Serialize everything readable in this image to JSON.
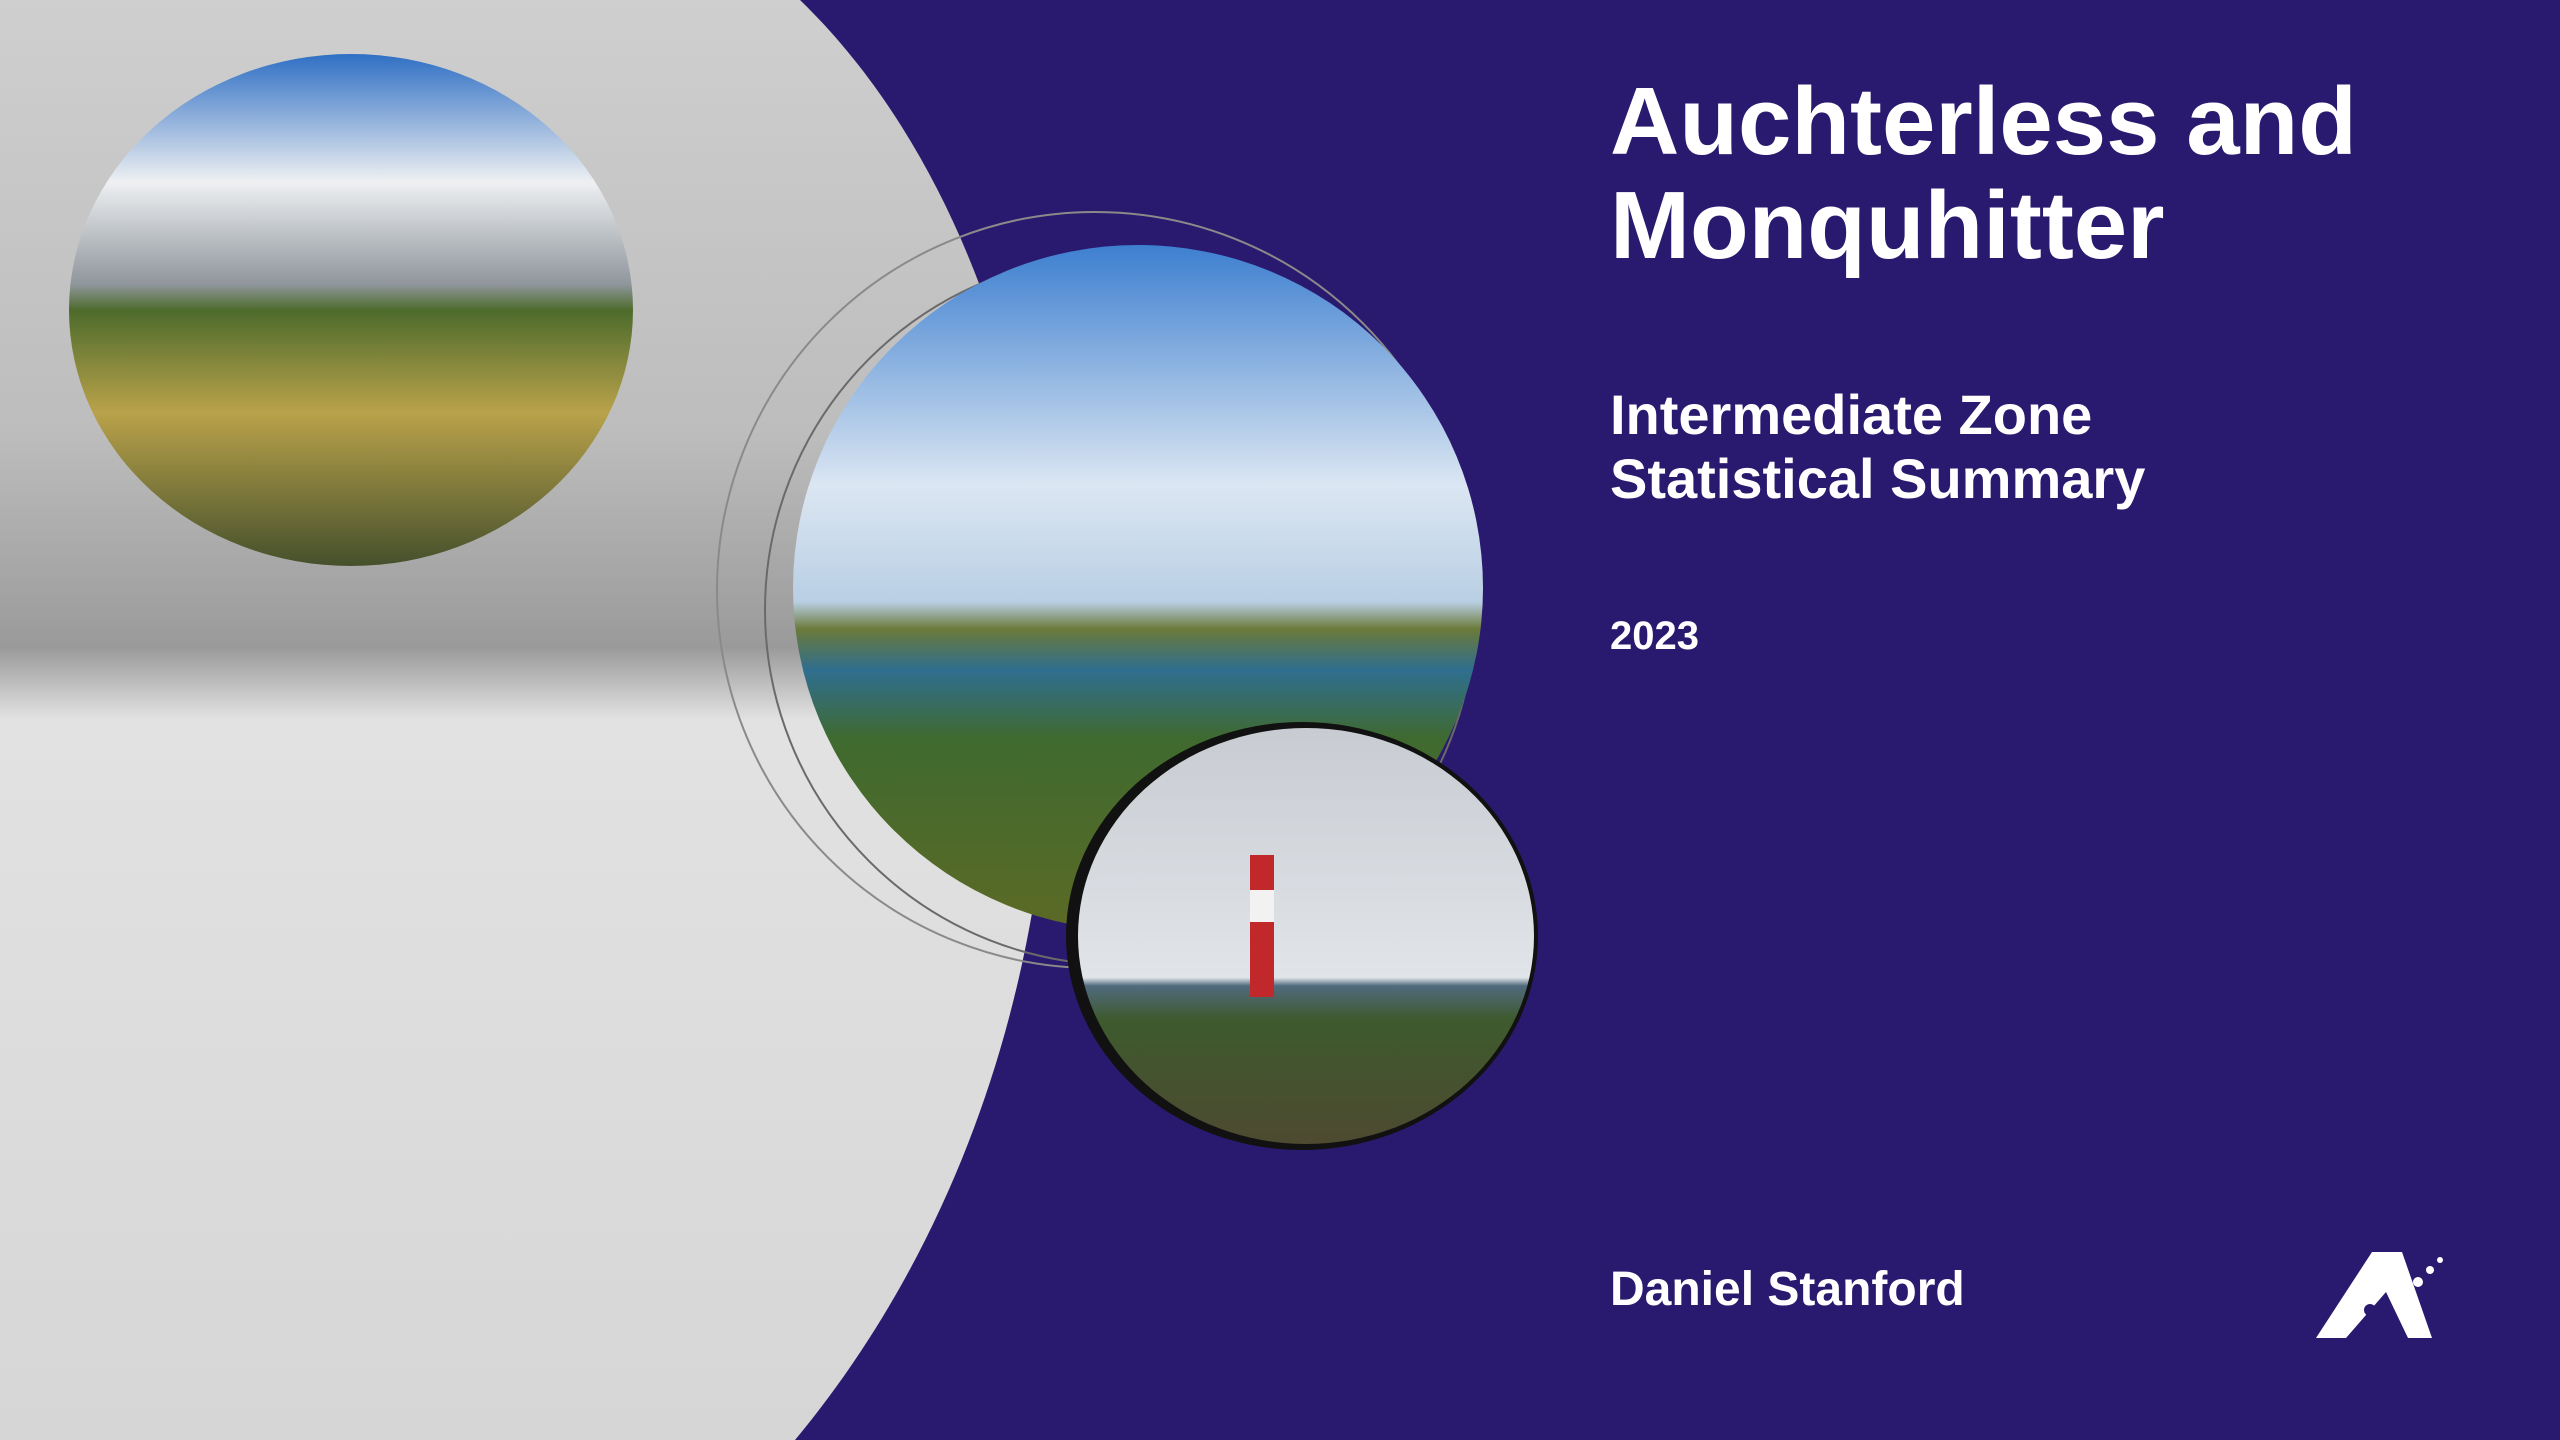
{
  "cover": {
    "title_lines": [
      "Auchterless and",
      "Monquhitter"
    ],
    "subtitle_lines": [
      "Intermediate Zone",
      "Statistical Summary"
    ],
    "year": "2023",
    "author": "Daniel Stanford"
  }
}
